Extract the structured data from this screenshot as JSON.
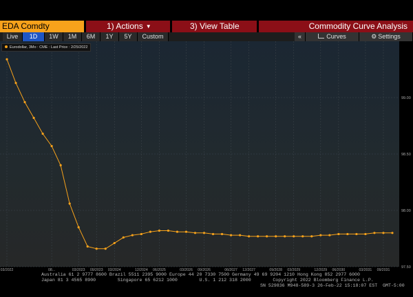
{
  "header": {
    "ticker": "EDA Comdty",
    "actions": {
      "num": "1)",
      "label": "Actions"
    },
    "view_table": {
      "num": "3)",
      "label": "View Table"
    },
    "title": "Commodity Curve Analysis"
  },
  "ranges": [
    "Live",
    "1D",
    "1W",
    "1M",
    "6M",
    "1Y",
    "5Y",
    "Custom"
  ],
  "active_range": "1D",
  "right_tools": {
    "collapse": "«",
    "curves": "Curves",
    "settings": "Settings"
  },
  "legend": {
    "text": "Eurodollar, 3Mo : CME : Last Price : 2/25/2022"
  },
  "colors": {
    "series": "#f7a21b",
    "menu": "#8b0f17",
    "ticker": "#f7a21b",
    "active": "#1f56c4"
  },
  "chart_data": {
    "type": "line",
    "series": [
      {
        "name": "Eurodollar, 3Mo : CME : Last Price : 2/25/2022",
        "x": [
          "03/2022",
          "04/2022",
          "05/2022",
          "06/2022",
          "07/2022",
          "08/2022",
          "09/2022",
          "12/2022",
          "03/2023",
          "06/2023",
          "09/2023",
          "12/2023",
          "03/2024",
          "06/2024",
          "09/2024",
          "12/2024",
          "03/2025",
          "06/2025",
          "09/2025",
          "12/2025",
          "03/2026",
          "06/2026",
          "09/2026",
          "12/2026",
          "03/2027",
          "06/2027",
          "09/2027",
          "12/2027",
          "03/2028",
          "06/2028",
          "09/2028",
          "12/2028",
          "03/2029",
          "06/2029",
          "09/2029",
          "12/2029",
          "03/2030",
          "06/2030",
          "09/2030",
          "12/2030",
          "03/2031",
          "06/2031",
          "09/2031",
          "12/2031"
        ],
        "values": [
          99.34,
          99.13,
          98.96,
          98.82,
          98.68,
          98.57,
          98.4,
          98.06,
          97.85,
          97.68,
          97.66,
          97.66,
          97.71,
          97.76,
          97.78,
          97.79,
          97.81,
          97.82,
          97.82,
          97.81,
          97.81,
          97.8,
          97.8,
          97.79,
          97.79,
          97.78,
          97.78,
          97.77,
          97.77,
          97.77,
          97.77,
          97.77,
          97.77,
          97.77,
          97.77,
          97.78,
          97.78,
          97.79,
          97.79,
          97.79,
          97.79,
          97.8,
          97.8,
          97.8
        ]
      }
    ],
    "x_tick_labels": [
      "03/2022",
      "08...",
      "03/2023",
      "09/2023",
      "03/2024",
      "12/2024",
      "06/2025",
      "03/2026",
      "09/2026",
      "06/2027",
      "12/2027",
      "09/2028",
      "03/2029",
      "12/2029",
      "06/2030",
      "03/2031",
      "09/2031"
    ],
    "x_tick_index": [
      0,
      5,
      8,
      10,
      12,
      15,
      17,
      20,
      22,
      25,
      27,
      30,
      32,
      35,
      37,
      40,
      42
    ],
    "y_ticks": [
      "99.00",
      "98.50",
      "98.00",
      "97.50"
    ],
    "ylim": [
      97.5,
      99.5
    ],
    "grid": true
  },
  "footer": {
    "line1": "Australia 61 2 9777 8600 Brazil 5511 2395 9000 Europe 44 20 7330 7500 Germany 49 69 9204 1210 Hong Kong 852 2977 6000",
    "line2": "Japan 81 3 4565 8900        Singapore 65 6212 1000        U.S. 1 212 318 2000        Copyright 2022 Bloomberg Finance L.P.",
    "line3": "SN 529836 M948-589-3 26-Feb-22 15:18:07 EST  GMT-5:00"
  }
}
